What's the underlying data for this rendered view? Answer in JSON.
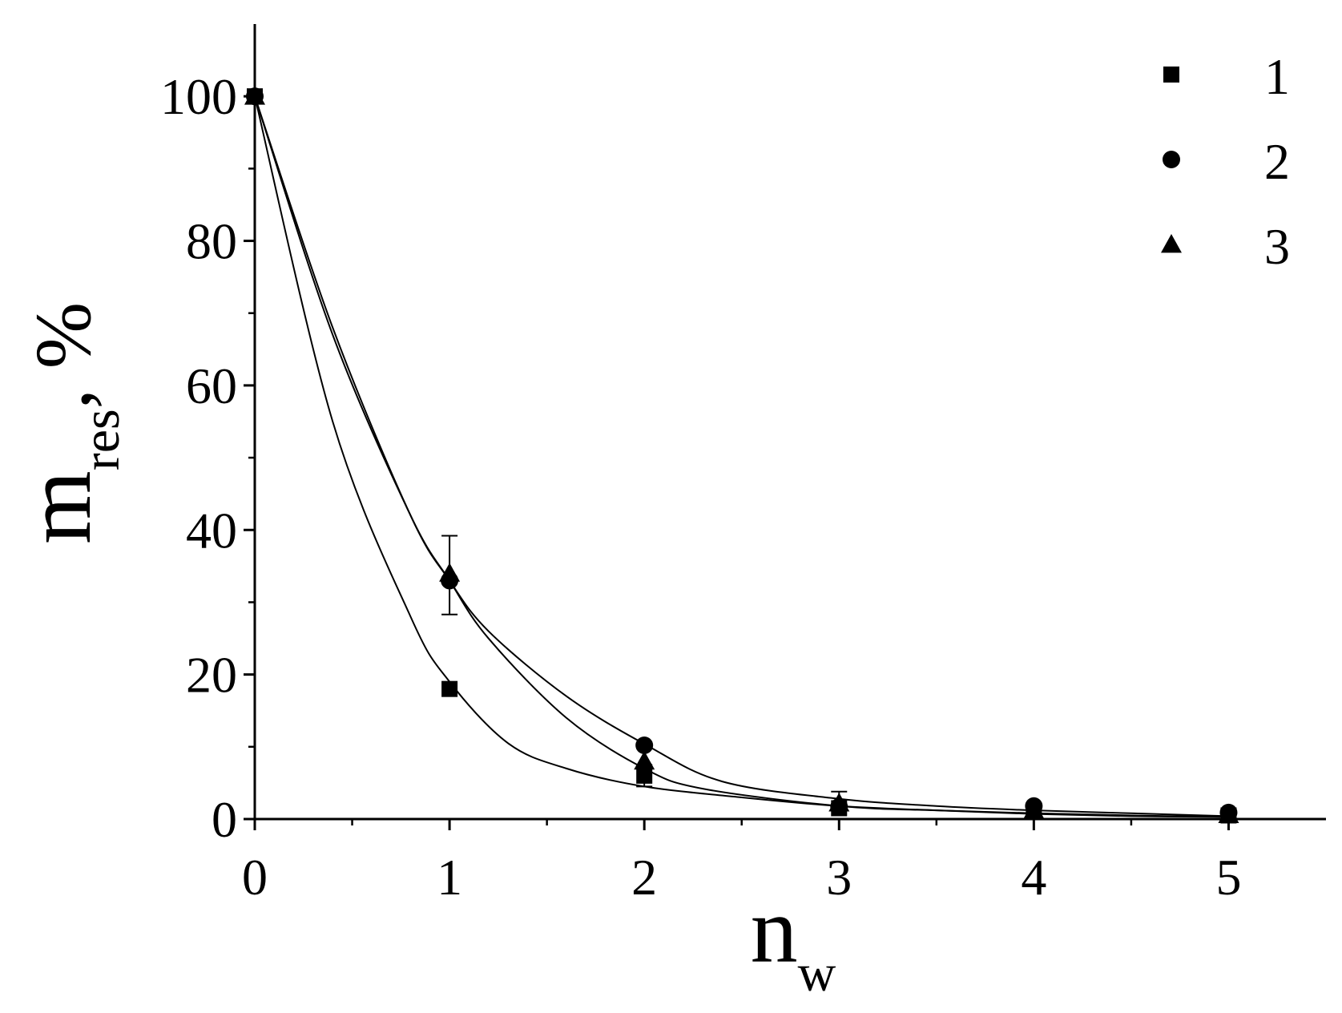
{
  "chart_data": {
    "type": "scatter",
    "title": "",
    "xlabel": {
      "main": "n",
      "sub": "w"
    },
    "ylabel": {
      "main": "m",
      "sub": "res",
      "suffix": ", %"
    },
    "xlim": [
      0,
      5.5
    ],
    "ylim": [
      0,
      110
    ],
    "x_ticks": [
      0,
      1,
      2,
      3,
      4,
      5
    ],
    "y_ticks": [
      0,
      20,
      40,
      60,
      80,
      100
    ],
    "grid": false,
    "legend_position": "top-right",
    "series": [
      {
        "name": "1",
        "marker": "square",
        "points": [
          [
            0,
            100
          ],
          [
            1,
            18
          ],
          [
            2,
            6
          ],
          [
            3,
            1.5
          ],
          [
            4,
            1
          ],
          [
            5,
            0.5
          ]
        ],
        "error_bars": [
          {
            "x": 2,
            "low": 4.5,
            "high": 7.5
          }
        ],
        "fit": [
          [
            0,
            100
          ],
          [
            0.4,
            55
          ],
          [
            0.8,
            28
          ],
          [
            1.0,
            19
          ],
          [
            1.3,
            10.5
          ],
          [
            1.6,
            7
          ],
          [
            2.0,
            4.5
          ],
          [
            2.5,
            3
          ],
          [
            3.0,
            1.8
          ],
          [
            3.5,
            1.2
          ],
          [
            4.0,
            0.7
          ],
          [
            4.5,
            0.4
          ],
          [
            5.0,
            0.3
          ]
        ]
      },
      {
        "name": "2",
        "marker": "circle",
        "points": [
          [
            0,
            100
          ],
          [
            1,
            33
          ],
          [
            2,
            10.2
          ],
          [
            3,
            1.7
          ],
          [
            4,
            1.8
          ],
          [
            5,
            0.9
          ]
        ],
        "error_bars": [
          {
            "x": 1,
            "low": 28.3,
            "high": 39.2
          }
        ],
        "fit": [
          [
            0,
            100
          ],
          [
            0.4,
            68
          ],
          [
            0.8,
            42
          ],
          [
            1.0,
            33
          ],
          [
            1.2,
            26
          ],
          [
            1.6,
            17
          ],
          [
            2.0,
            10.4
          ],
          [
            2.4,
            5.2
          ],
          [
            3.0,
            2.8
          ],
          [
            3.5,
            1.8
          ],
          [
            4.0,
            1.2
          ],
          [
            4.5,
            0.8
          ],
          [
            5.0,
            0.4
          ]
        ]
      },
      {
        "name": "3",
        "marker": "triangle",
        "points": [
          [
            0,
            100
          ],
          [
            1,
            34
          ],
          [
            2,
            8
          ],
          [
            3,
            2.2
          ],
          [
            4,
            1.2
          ],
          [
            5,
            0.6
          ]
        ],
        "error_bars": [
          {
            "x": 3,
            "low": 1.5,
            "high": 3.8
          }
        ],
        "fit": [
          [
            0,
            100
          ],
          [
            0.4,
            67
          ],
          [
            0.8,
            42
          ],
          [
            1.0,
            33
          ],
          [
            1.2,
            25
          ],
          [
            1.6,
            14
          ],
          [
            2.0,
            7
          ],
          [
            2.3,
            4.2
          ],
          [
            3.0,
            1.8
          ],
          [
            3.5,
            1.2
          ],
          [
            4.0,
            0.8
          ],
          [
            4.5,
            0.5
          ],
          [
            5.0,
            0.3
          ]
        ]
      }
    ]
  }
}
